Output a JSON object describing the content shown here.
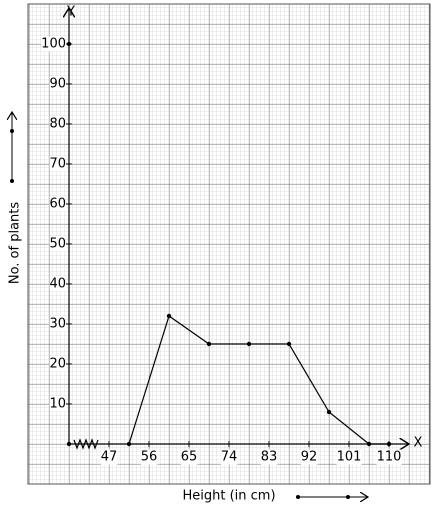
{
  "chart_data": {
    "type": "line",
    "x_label": "Height (in cm)",
    "y_label": "No. of plants",
    "x_axis_letter": "X",
    "y_axis_letter": "Y",
    "x": [
      51.5,
      60.5,
      69.5,
      78.5,
      87.5,
      96.5,
      105.5,
      110
    ],
    "y": [
      0,
      32,
      25,
      25,
      25,
      8,
      0,
      0
    ],
    "xlim": [
      38,
      114.5
    ],
    "ylim": [
      0,
      109
    ],
    "xticks": [
      47,
      56,
      65,
      74,
      83,
      92,
      101,
      110
    ],
    "yticks": [
      10,
      20,
      30,
      40,
      50,
      60,
      70,
      80,
      90,
      100
    ],
    "color": "#000000"
  }
}
